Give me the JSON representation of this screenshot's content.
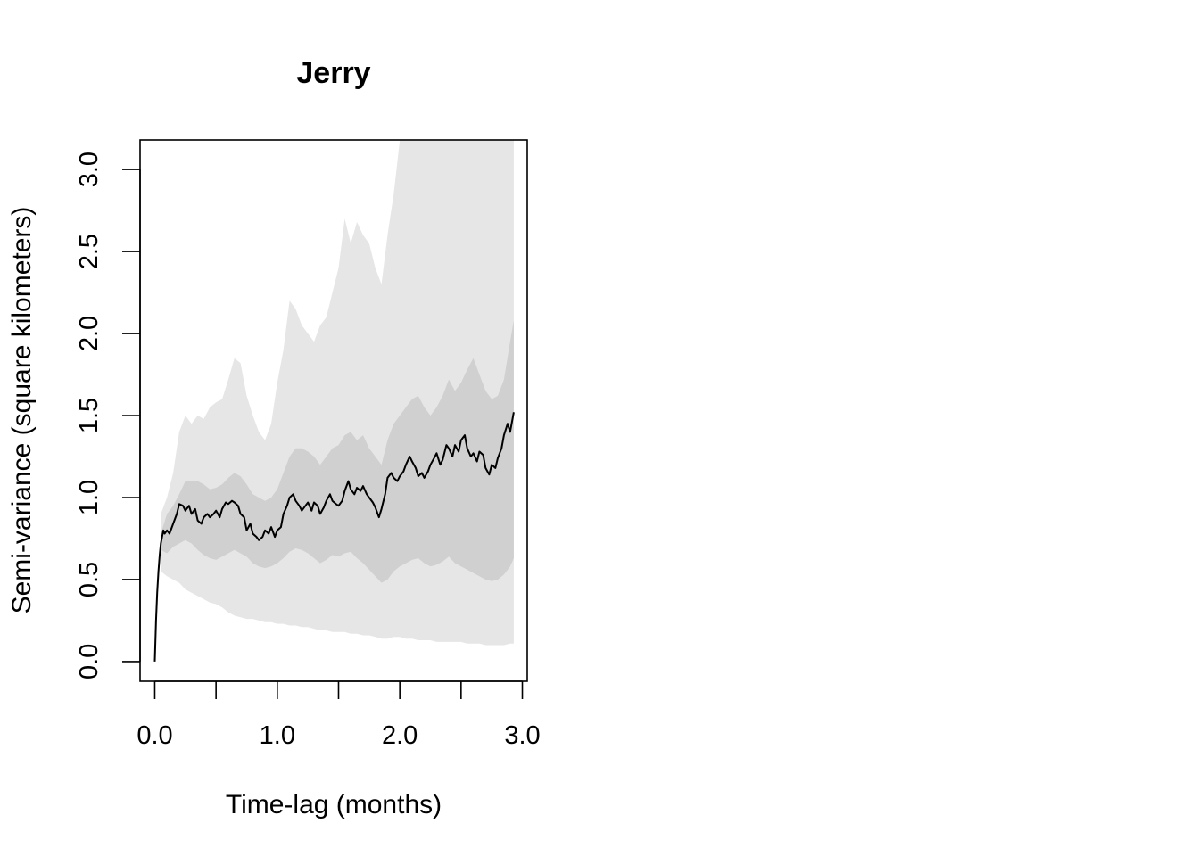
{
  "chart_data": {
    "type": "line",
    "title": "Jerry",
    "xlabel": "Time-lag (months)",
    "ylabel": "Semi-variance (square kilometers)",
    "xlim": [
      -0.12,
      3.04
    ],
    "ylim": [
      -0.12,
      3.18
    ],
    "x_ticks": [
      0,
      0.5,
      1.0,
      1.5,
      2.0,
      2.5,
      3.0
    ],
    "x_tick_labels": [
      "0.0",
      "1.0",
      "2.0",
      "3.0"
    ],
    "x_tick_label_values": [
      0,
      1,
      2,
      3
    ],
    "y_ticks": [
      0,
      0.5,
      1.0,
      1.5,
      2.0,
      2.5,
      3.0
    ],
    "y_tick_labels": [
      "0.0",
      "0.5",
      "1.0",
      "1.5",
      "2.0",
      "2.5",
      "3.0"
    ],
    "grid": false,
    "colors": {
      "line": "#000000",
      "inner_band": "#d0d0d0",
      "outer_band": "#e6e6e6"
    },
    "series": [
      {
        "role": "semi-variance estimate",
        "x": [
          0,
          0.01,
          0.02,
          0.03,
          0.04,
          0.05,
          0.06,
          0.07,
          0.08,
          0.1,
          0.12,
          0.15,
          0.18,
          0.2,
          0.23,
          0.25,
          0.28,
          0.3,
          0.33,
          0.35,
          0.38,
          0.4,
          0.43,
          0.45,
          0.48,
          0.5,
          0.53,
          0.55,
          0.58,
          0.6,
          0.63,
          0.65,
          0.68,
          0.7,
          0.73,
          0.75,
          0.78,
          0.8,
          0.83,
          0.85,
          0.88,
          0.9,
          0.93,
          0.95,
          0.98,
          1.0,
          1.03,
          1.05,
          1.08,
          1.1,
          1.13,
          1.15,
          1.18,
          1.2,
          1.23,
          1.25,
          1.28,
          1.3,
          1.33,
          1.35,
          1.38,
          1.4,
          1.43,
          1.45,
          1.48,
          1.5,
          1.53,
          1.55,
          1.58,
          1.6,
          1.63,
          1.65,
          1.68,
          1.7,
          1.73,
          1.75,
          1.78,
          1.8,
          1.83,
          1.85,
          1.88,
          1.9,
          1.93,
          1.95,
          1.98,
          2.0,
          2.03,
          2.05,
          2.08,
          2.1,
          2.13,
          2.15,
          2.18,
          2.2,
          2.23,
          2.25,
          2.28,
          2.3,
          2.33,
          2.35,
          2.38,
          2.4,
          2.43,
          2.45,
          2.48,
          2.5,
          2.53,
          2.55,
          2.58,
          2.6,
          2.63,
          2.65,
          2.68,
          2.7,
          2.73,
          2.75,
          2.78,
          2.8,
          2.83,
          2.85,
          2.88,
          2.9,
          2.93
        ],
        "y": [
          0.0,
          0.25,
          0.42,
          0.55,
          0.65,
          0.72,
          0.76,
          0.8,
          0.78,
          0.8,
          0.78,
          0.84,
          0.9,
          0.96,
          0.95,
          0.92,
          0.95,
          0.9,
          0.93,
          0.86,
          0.84,
          0.88,
          0.9,
          0.88,
          0.9,
          0.92,
          0.88,
          0.93,
          0.97,
          0.96,
          0.98,
          0.97,
          0.95,
          0.9,
          0.88,
          0.8,
          0.84,
          0.78,
          0.76,
          0.74,
          0.76,
          0.8,
          0.78,
          0.82,
          0.76,
          0.8,
          0.82,
          0.9,
          0.95,
          1.0,
          1.02,
          0.98,
          0.95,
          0.92,
          0.95,
          0.97,
          0.92,
          0.97,
          0.95,
          0.9,
          0.94,
          0.98,
          1.02,
          0.98,
          0.96,
          0.95,
          0.98,
          1.04,
          1.1,
          1.05,
          1.02,
          1.06,
          1.04,
          1.07,
          1.02,
          1.0,
          0.97,
          0.94,
          0.88,
          0.93,
          1.02,
          1.12,
          1.15,
          1.12,
          1.1,
          1.13,
          1.16,
          1.2,
          1.25,
          1.22,
          1.18,
          1.13,
          1.15,
          1.12,
          1.16,
          1.2,
          1.24,
          1.27,
          1.2,
          1.23,
          1.32,
          1.3,
          1.25,
          1.32,
          1.28,
          1.35,
          1.38,
          1.3,
          1.25,
          1.27,
          1.22,
          1.28,
          1.26,
          1.18,
          1.14,
          1.2,
          1.18,
          1.24,
          1.3,
          1.38,
          1.45,
          1.4,
          1.52
        ]
      },
      {
        "role": "inner confidence band",
        "x": [
          0.05,
          0.1,
          0.15,
          0.2,
          0.25,
          0.3,
          0.35,
          0.4,
          0.45,
          0.5,
          0.55,
          0.6,
          0.65,
          0.7,
          0.75,
          0.8,
          0.85,
          0.9,
          0.95,
          1.0,
          1.05,
          1.1,
          1.15,
          1.2,
          1.25,
          1.3,
          1.35,
          1.4,
          1.45,
          1.5,
          1.55,
          1.6,
          1.65,
          1.7,
          1.75,
          1.8,
          1.85,
          1.9,
          1.95,
          2.0,
          2.05,
          2.1,
          2.15,
          2.2,
          2.25,
          2.3,
          2.35,
          2.4,
          2.45,
          2.5,
          2.55,
          2.6,
          2.65,
          2.7,
          2.75,
          2.8,
          2.85,
          2.9,
          2.93
        ],
        "upper": [
          0.78,
          0.9,
          0.95,
          1.02,
          1.1,
          1.1,
          1.1,
          1.08,
          1.05,
          1.06,
          1.08,
          1.12,
          1.15,
          1.13,
          1.08,
          1.02,
          1.0,
          0.98,
          1.0,
          1.05,
          1.15,
          1.25,
          1.3,
          1.3,
          1.28,
          1.25,
          1.2,
          1.25,
          1.3,
          1.32,
          1.38,
          1.4,
          1.35,
          1.38,
          1.3,
          1.25,
          1.2,
          1.35,
          1.45,
          1.5,
          1.55,
          1.6,
          1.62,
          1.55,
          1.5,
          1.55,
          1.62,
          1.72,
          1.65,
          1.7,
          1.78,
          1.85,
          1.75,
          1.65,
          1.6,
          1.62,
          1.72,
          1.95,
          2.08
        ],
        "lower": [
          0.68,
          0.66,
          0.7,
          0.72,
          0.74,
          0.72,
          0.68,
          0.65,
          0.63,
          0.62,
          0.64,
          0.66,
          0.68,
          0.66,
          0.64,
          0.6,
          0.58,
          0.57,
          0.58,
          0.6,
          0.63,
          0.67,
          0.69,
          0.68,
          0.66,
          0.63,
          0.6,
          0.62,
          0.65,
          0.64,
          0.66,
          0.67,
          0.63,
          0.6,
          0.56,
          0.52,
          0.48,
          0.5,
          0.55,
          0.58,
          0.6,
          0.62,
          0.63,
          0.6,
          0.58,
          0.59,
          0.61,
          0.64,
          0.6,
          0.58,
          0.56,
          0.54,
          0.52,
          0.5,
          0.49,
          0.5,
          0.53,
          0.58,
          0.63
        ]
      },
      {
        "role": "outer confidence band",
        "x": [
          0.05,
          0.1,
          0.15,
          0.2,
          0.25,
          0.3,
          0.35,
          0.4,
          0.45,
          0.5,
          0.55,
          0.6,
          0.65,
          0.7,
          0.75,
          0.8,
          0.85,
          0.9,
          0.95,
          1.0,
          1.05,
          1.1,
          1.15,
          1.2,
          1.25,
          1.3,
          1.35,
          1.4,
          1.45,
          1.5,
          1.55,
          1.6,
          1.65,
          1.7,
          1.75,
          1.8,
          1.85,
          1.9,
          1.95,
          2.0,
          2.05,
          2.1,
          2.15,
          2.2,
          2.25,
          2.3,
          2.35,
          2.4,
          2.45,
          2.5,
          2.55,
          2.6,
          2.65,
          2.7,
          2.75,
          2.8,
          2.85,
          2.9,
          2.93
        ],
        "upper": [
          0.9,
          1.0,
          1.15,
          1.4,
          1.5,
          1.45,
          1.5,
          1.48,
          1.55,
          1.58,
          1.6,
          1.72,
          1.85,
          1.82,
          1.62,
          1.5,
          1.4,
          1.35,
          1.45,
          1.7,
          1.9,
          2.2,
          2.15,
          2.05,
          2.0,
          1.95,
          2.05,
          2.1,
          2.25,
          2.4,
          2.7,
          2.55,
          2.68,
          2.6,
          2.55,
          2.4,
          2.3,
          2.6,
          2.85,
          3.18,
          3.18,
          3.18,
          3.18,
          3.18,
          3.18,
          3.18,
          3.18,
          3.18,
          3.18,
          3.18,
          3.18,
          3.18,
          3.18,
          3.18,
          3.18,
          3.18,
          3.18,
          3.18,
          3.18
        ],
        "lower": [
          0.55,
          0.52,
          0.5,
          0.48,
          0.44,
          0.42,
          0.4,
          0.38,
          0.36,
          0.35,
          0.33,
          0.3,
          0.28,
          0.27,
          0.26,
          0.26,
          0.25,
          0.24,
          0.24,
          0.23,
          0.23,
          0.22,
          0.22,
          0.21,
          0.21,
          0.2,
          0.19,
          0.19,
          0.18,
          0.18,
          0.18,
          0.17,
          0.17,
          0.16,
          0.16,
          0.15,
          0.14,
          0.14,
          0.15,
          0.15,
          0.14,
          0.14,
          0.13,
          0.13,
          0.13,
          0.12,
          0.12,
          0.12,
          0.12,
          0.12,
          0.11,
          0.11,
          0.11,
          0.1,
          0.1,
          0.1,
          0.1,
          0.11,
          0.11
        ]
      }
    ]
  }
}
